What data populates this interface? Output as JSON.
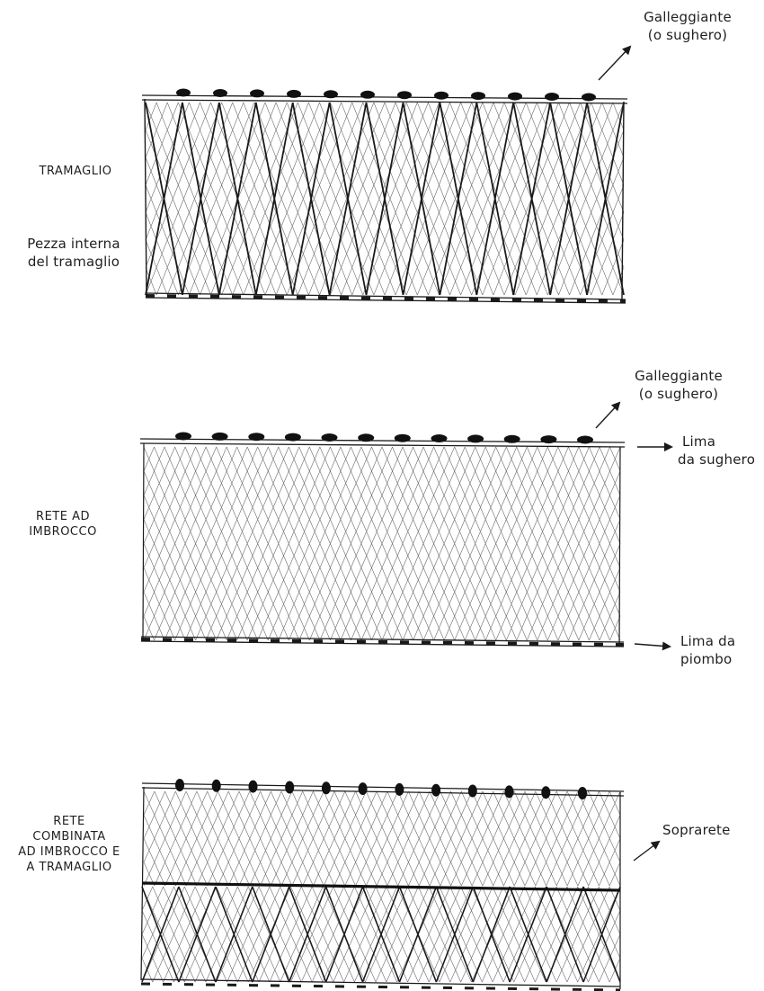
{
  "panels": {
    "tramaglio": {
      "title": "TRAMAGLIO",
      "inner_label_1": "Pezza interna",
      "inner_label_2": "del tramaglio",
      "float_1": "Galleggiante",
      "float_2": "(o sughero)"
    },
    "imbrocco": {
      "title_1": "RETE AD",
      "title_2": "IMBROCCO",
      "float_1": "Galleggiante",
      "float_2": "(o sughero)",
      "cork_line_1": "Lima",
      "cork_line_2": "da sughero",
      "lead_line_1": "Lima da",
      "lead_line_2": "piombo"
    },
    "combinata": {
      "title_1": "RETE",
      "title_2": "COMBINATA",
      "title_3": "AD IMBROCCO E",
      "title_4": "A TRAMAGLIO",
      "top_net": "Soprarete"
    }
  },
  "colors": {
    "ink": "#1a1a1a",
    "mesh": "#6a6a6a",
    "paper": "#ffffff"
  }
}
